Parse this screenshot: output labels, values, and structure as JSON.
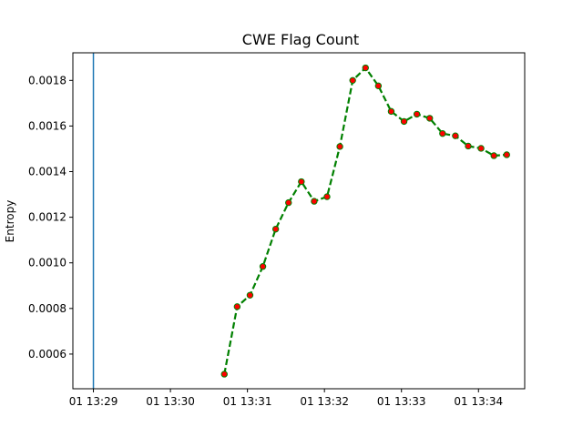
{
  "chart_data": {
    "type": "line",
    "title": "CWE Flag Count",
    "xlabel": "",
    "ylabel": "Entropy",
    "x_tick_labels": [
      "01 13:29",
      "01 13:30",
      "01 13:31",
      "01 13:32",
      "01 13:33",
      "01 13:34"
    ],
    "x_tick_values": [
      "13:29",
      "13:30",
      "13:31",
      "13:32",
      "13:33",
      "13:34"
    ],
    "y_tick_labels": [
      "0.0006",
      "0.0008",
      "0.0010",
      "0.0012",
      "0.0014",
      "0.0016",
      "0.0018"
    ],
    "y_tick_values": [
      0.0006,
      0.0008,
      0.001,
      0.0012,
      0.0014,
      0.0016,
      0.0018
    ],
    "xlim": [
      "13:28:44",
      "13:34:36"
    ],
    "ylim": [
      0.000448,
      0.001921
    ],
    "grid": false,
    "vertical_line": {
      "x": "13:29",
      "color": "#1f77b4"
    },
    "series": [
      {
        "line_color": "#008000",
        "line_style": "dashed",
        "marker_fill": "#ff0000",
        "marker_edge": "#008000",
        "x": [
          "13:30:42",
          "13:30:52",
          "13:31:02",
          "13:31:12",
          "13:31:22",
          "13:31:32",
          "13:31:42",
          "13:31:52",
          "13:32:02",
          "13:32:12",
          "13:32:22",
          "13:32:32",
          "13:32:42",
          "13:32:52",
          "13:33:02",
          "13:33:12",
          "13:33:22",
          "13:33:32",
          "13:33:42",
          "13:33:52",
          "13:34:02",
          "13:34:12",
          "13:34:22"
        ],
        "y": [
          0.000512,
          0.000808,
          0.000858,
          0.000984,
          0.001148,
          0.001264,
          0.001356,
          0.00127,
          0.00129,
          0.00151,
          0.0018,
          0.001855,
          0.001776,
          0.001664,
          0.00162,
          0.001652,
          0.001634,
          0.001567,
          0.001557,
          0.001512,
          0.001502,
          0.00147,
          0.001474
        ]
      }
    ]
  },
  "colors": {
    "axes": "#000000",
    "background": "#ffffff"
  }
}
